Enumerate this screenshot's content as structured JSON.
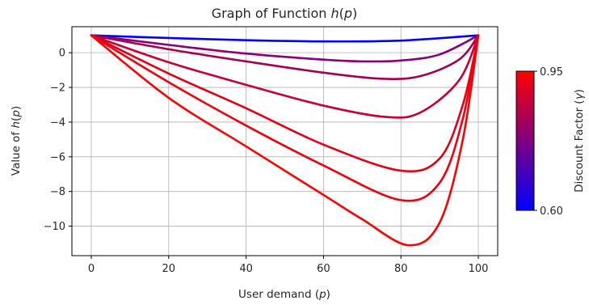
{
  "chart_data": {
    "type": "line",
    "title": "Graph of Function h(p)",
    "title_parts": {
      "prefix": "Graph of Function ",
      "math": "h",
      "open": "(",
      "var": "p",
      "close": ")"
    },
    "xlabel": "User demand (p)",
    "xlabel_parts": {
      "prefix": "User demand ",
      "open": "(",
      "var": "p",
      "close": ")"
    },
    "ylabel": "Value of h(p)",
    "ylabel_parts": {
      "prefix": "Value of ",
      "math": "h",
      "open": "(",
      "var": "p",
      "close": ")"
    },
    "xlim": [
      -5,
      105
    ],
    "ylim": [
      -11.7,
      1.5
    ],
    "x_ticks": [
      0,
      20,
      40,
      60,
      80,
      100
    ],
    "x_tick_labels": [
      "0",
      "20",
      "40",
      "60",
      "80",
      "100"
    ],
    "y_ticks": [
      0,
      -2,
      -4,
      -6,
      -8,
      -10
    ],
    "y_tick_labels": [
      "0",
      "−2",
      "−4",
      "−6",
      "−8",
      "−10"
    ],
    "grid": true,
    "colorbar": {
      "label": "Discount Factor (γ)",
      "label_parts": {
        "prefix": "Discount Factor ",
        "open": "(",
        "var": "γ",
        "close": ")"
      },
      "min": 0.6,
      "max": 0.95,
      "tick_labels": [
        "0.60",
        "0.95"
      ],
      "color_low": "#0000ff",
      "color_high": "#ff0000"
    },
    "series": [
      {
        "gamma": 0.6,
        "color": "#0000ff",
        "x": [
          0,
          20,
          40,
          60,
          80,
          100
        ],
        "y": [
          1.0,
          0.85,
          0.72,
          0.65,
          0.7,
          1.0
        ]
      },
      {
        "gamma": 0.85,
        "color": "#8a0075",
        "x": [
          0,
          20,
          40,
          60,
          70,
          80,
          90,
          100
        ],
        "y": [
          1.0,
          0.45,
          -0.05,
          -0.4,
          -0.5,
          -0.45,
          -0.1,
          1.0
        ]
      },
      {
        "gamma": 0.9,
        "color": "#a30050",
        "x": [
          0,
          20,
          40,
          60,
          75,
          85,
          95,
          100
        ],
        "y": [
          1.0,
          0.2,
          -0.5,
          -1.15,
          -1.5,
          -1.35,
          -0.4,
          1.0
        ]
      },
      {
        "gamma": 0.925,
        "color": "#c60035",
        "x": [
          0,
          20,
          40,
          60,
          76,
          85,
          95,
          100
        ],
        "y": [
          1.0,
          -0.55,
          -1.85,
          -3.05,
          -3.7,
          -3.45,
          -1.6,
          1.0
        ]
      },
      {
        "gamma": 0.94,
        "color": "#e20019",
        "x": [
          0,
          20,
          40,
          60,
          80,
          90,
          96,
          100
        ],
        "y": [
          1.0,
          -1.2,
          -3.2,
          -5.3,
          -6.8,
          -6.1,
          -3.0,
          1.0
        ]
      },
      {
        "gamma": 0.945,
        "color": "#f0000d",
        "x": [
          0,
          20,
          40,
          60,
          80,
          90,
          96,
          100
        ],
        "y": [
          1.0,
          -1.7,
          -4.2,
          -6.5,
          -8.5,
          -7.5,
          -3.8,
          1.0
        ]
      },
      {
        "gamma": 0.95,
        "color": "#ff0000",
        "x": [
          0,
          20,
          40,
          60,
          70,
          82,
          90,
          96,
          100
        ],
        "y": [
          1.0,
          -2.6,
          -5.4,
          -8.2,
          -9.6,
          -11.1,
          -9.8,
          -5.0,
          1.0
        ]
      }
    ]
  }
}
